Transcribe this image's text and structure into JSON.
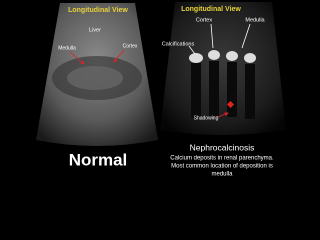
{
  "left_panel": {
    "view_title": "Longitudinal View",
    "labels": [
      "Liver",
      "Medulla",
      "Cortex"
    ],
    "caption": "Normal"
  },
  "right_panel": {
    "view_title": "Longitudinal View",
    "labels": [
      "Cortex",
      "Medulla",
      "Calcifications",
      "Shadowing"
    ],
    "heading": "Nephrocalcinosis",
    "description": [
      "Calcium deposits in renal parenchyma.",
      "Most common location of deposition is",
      "medulla"
    ]
  }
}
